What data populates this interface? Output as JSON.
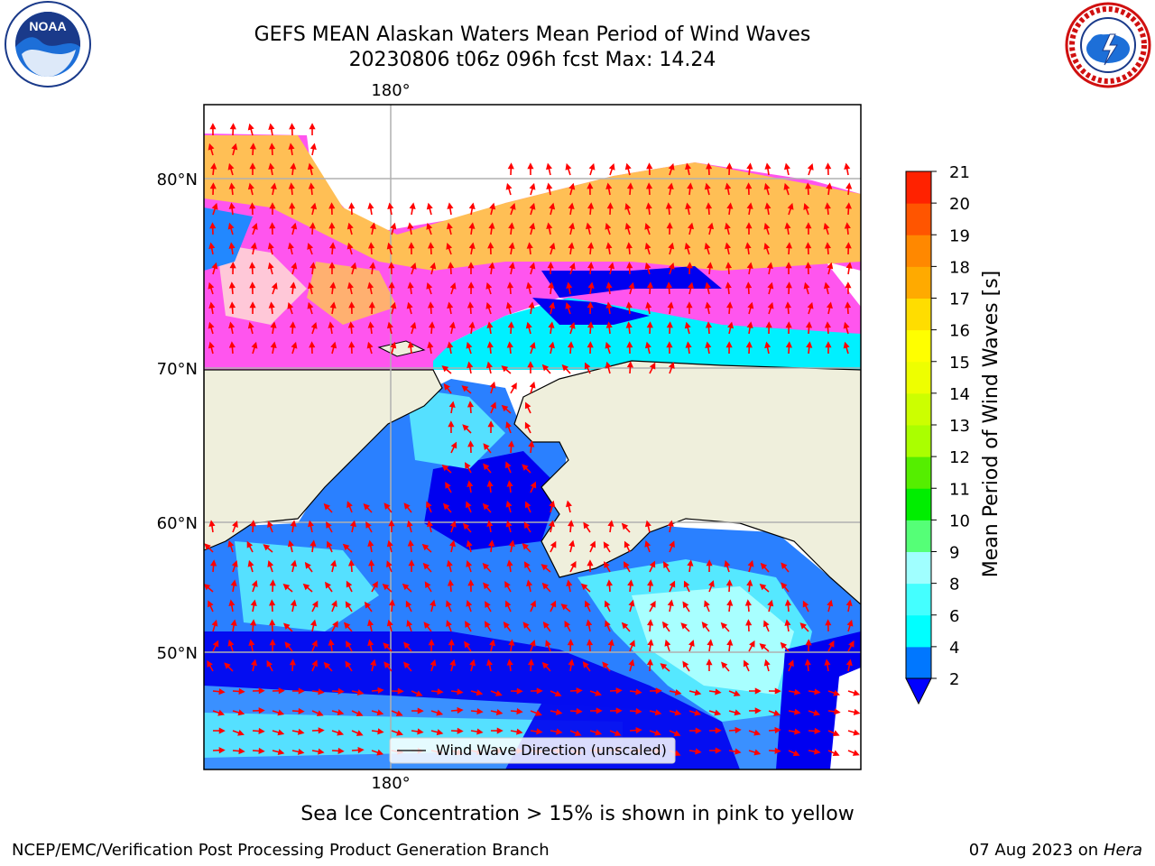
{
  "title_line1": "GEFS MEAN Alaskan Waters Mean Period of Wind Waves",
  "title_line2": "20230806 t06z 096h fcst   Max: 14.24",
  "logos": {
    "left": "noaa-logo",
    "right": "nws-logo"
  },
  "map": {
    "lon_label_top": "180°",
    "lon_label_bottom": "180°",
    "lat_labels": [
      "80°N",
      "70°N",
      "60°N",
      "50°N"
    ],
    "legend_label": "Wind Wave Direction (unscaled)",
    "arrow_color": "#ff0000",
    "land_color": "#efefdc",
    "ocean_dark": "#0000f5",
    "ice_colors": [
      "#ff44ee",
      "#ffc8f0",
      "#ffb040",
      "#ffd050"
    ]
  },
  "colorbar": {
    "label": "Mean Period of Wind Waves [s]",
    "ticks": [
      "2",
      "4",
      "6",
      "8",
      "9",
      "10",
      "11",
      "12",
      "13",
      "14",
      "15",
      "16",
      "17",
      "18",
      "19",
      "20",
      "21"
    ],
    "colors": [
      "#0077ff",
      "#00ffff",
      "#44ffff",
      "#a0ffff",
      "#55ff77",
      "#00ee00",
      "#55ee00",
      "#aaff00",
      "#ccff00",
      "#eeff00",
      "#ffff00",
      "#ffdd00",
      "#ffaa00",
      "#ff8800",
      "#ff5500",
      "#ff2200"
    ],
    "under_color": "#0000ff"
  },
  "subtitle": "Sea Ice Concentration > 15% is shown in pink to yellow",
  "footer_left": "NCEP/EMC/Verification Post Processing Product Generation Branch",
  "footer_right_date": "07 Aug 2023 on",
  "footer_right_host": "Hera"
}
